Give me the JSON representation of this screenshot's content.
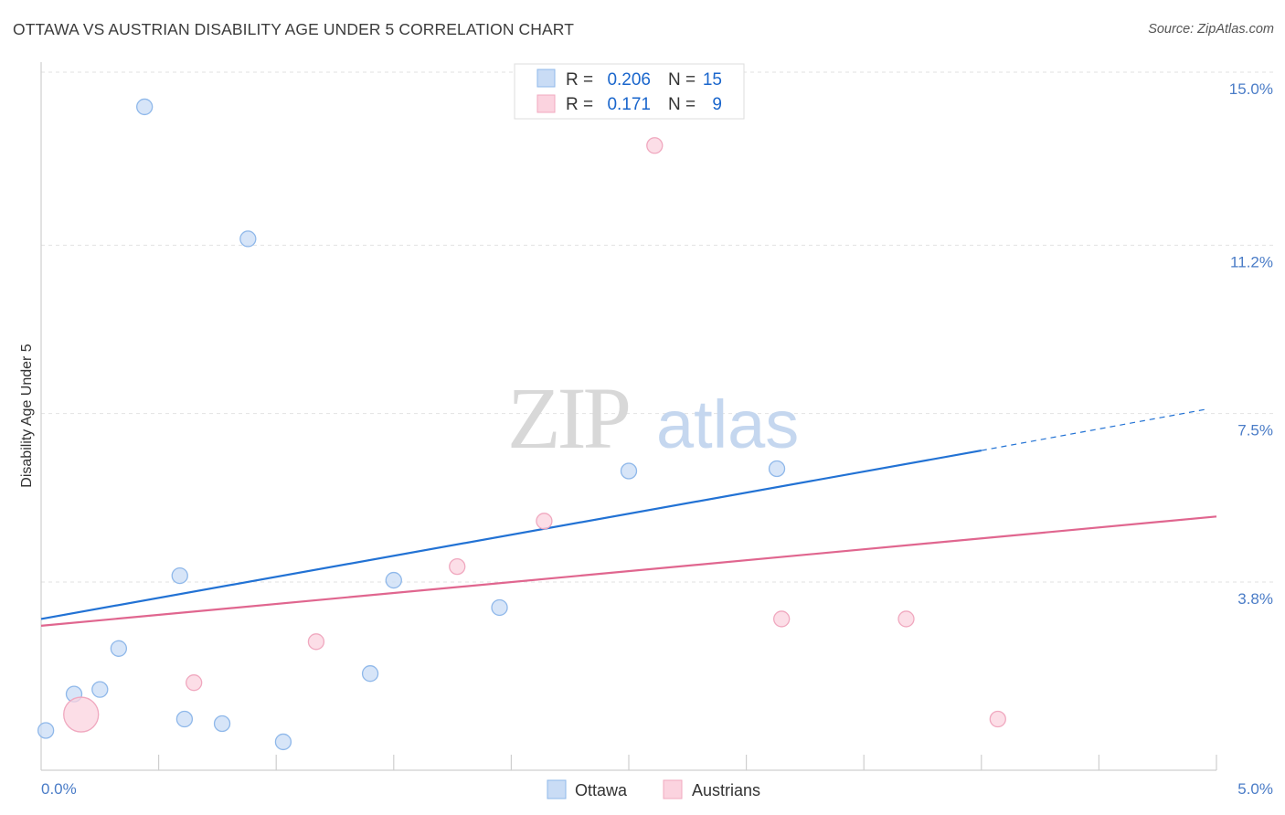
{
  "chart_data": {
    "type": "scatter",
    "title": "OTTAWA VS AUSTRIAN DISABILITY AGE UNDER 5 CORRELATION CHART",
    "source": "Source: ZipAtlas.com",
    "xlabel": "",
    "ylabel": "Disability Age Under 5",
    "xlim": [
      0.0,
      5.0
    ],
    "ylim": [
      0.0,
      15.4
    ],
    "x_tick_labels": [
      "0.0%",
      "5.0%"
    ],
    "y_ticks": [
      15.0,
      11.2,
      7.5,
      3.8
    ],
    "y_tick_labels": [
      "15.0%",
      "11.2%",
      "7.5%",
      "3.8%"
    ],
    "watermark": "ZIPatlas",
    "series": [
      {
        "name": "Ottawa",
        "color": "#8fb8ea",
        "fill": "#c9dcf5",
        "line_color": "#2272d4",
        "legend_r": "0.206",
        "legend_n": "15",
        "trend": {
          "x0": 0.0,
          "y0": 3.35,
          "x1": 4.0,
          "y1": 7.05,
          "x_dash_end": 4.95,
          "y_dash_end": 7.95
        },
        "points": [
          {
            "x": 0.02,
            "y": 0.9
          },
          {
            "x": 0.14,
            "y": 1.7
          },
          {
            "x": 0.25,
            "y": 1.8
          },
          {
            "x": 0.33,
            "y": 2.7
          },
          {
            "x": 0.44,
            "y": 14.6
          },
          {
            "x": 0.59,
            "y": 4.3
          },
          {
            "x": 0.61,
            "y": 1.15
          },
          {
            "x": 0.77,
            "y": 1.05
          },
          {
            "x": 0.88,
            "y": 11.7
          },
          {
            "x": 1.03,
            "y": 0.65
          },
          {
            "x": 1.4,
            "y": 2.15
          },
          {
            "x": 1.5,
            "y": 4.2
          },
          {
            "x": 1.95,
            "y": 3.6
          },
          {
            "x": 2.5,
            "y": 6.6
          },
          {
            "x": 3.13,
            "y": 6.65
          }
        ]
      },
      {
        "name": "Austrians",
        "color": "#f0a8bf",
        "fill": "#fbd3df",
        "line_color": "#e0668f",
        "legend_r": "0.171",
        "legend_n": "9",
        "trend": {
          "x0": 0.0,
          "y0": 3.2,
          "x1": 5.0,
          "y1": 5.6
        },
        "points": [
          {
            "x": 0.17,
            "y": 1.25,
            "size": "large"
          },
          {
            "x": 0.65,
            "y": 1.95
          },
          {
            "x": 1.17,
            "y": 2.85
          },
          {
            "x": 1.77,
            "y": 4.5
          },
          {
            "x": 2.14,
            "y": 5.5
          },
          {
            "x": 2.61,
            "y": 13.75
          },
          {
            "x": 3.15,
            "y": 3.35
          },
          {
            "x": 3.68,
            "y": 3.35
          },
          {
            "x": 4.07,
            "y": 1.15
          }
        ]
      }
    ],
    "legend": {
      "r_label": "R =",
      "n_label": "N ="
    }
  }
}
